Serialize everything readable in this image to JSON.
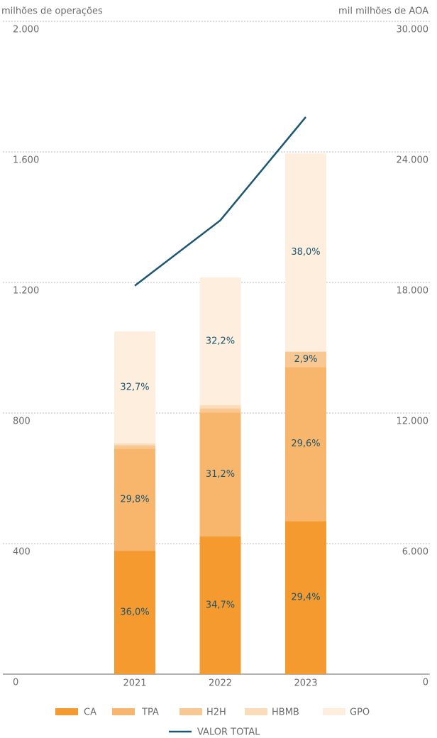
{
  "chart_data": {
    "type": "bar",
    "stacked": true,
    "y_label": "milhões de operações",
    "y2_label": "mil milhões de AOA",
    "categories": [
      "2021",
      "2022",
      "2023"
    ],
    "ylim": [
      0,
      2000
    ],
    "yticks": [
      0,
      400,
      800,
      {
        "value": 1200,
        "label": "1.200"
      },
      {
        "value": 1600,
        "label": "1.600"
      },
      {
        "value": 2000,
        "label": "2.000"
      }
    ],
    "y2lim": [
      0,
      30000
    ],
    "y2ticks": [
      0,
      {
        "value": 6000,
        "label": "6.000"
      },
      {
        "value": 12000,
        "label": "12.000"
      },
      {
        "value": 18000,
        "label": "18.000"
      },
      {
        "value": 24000,
        "label": "24.000"
      },
      {
        "value": 30000,
        "label": "30.000"
      }
    ],
    "grid": true,
    "series": [
      {
        "name": "CA",
        "color": "#f59a2e",
        "values": [
          378,
          422,
          469
        ],
        "percent_labels": [
          "36,0%",
          "34,7%",
          "29,4%"
        ]
      },
      {
        "name": "TPA",
        "color": "#f8b66c",
        "values": [
          313,
          379,
          472
        ],
        "percent_labels": [
          "29,8%",
          "31,2%",
          "29,6%"
        ]
      },
      {
        "name": "H2H",
        "color": "#f9c892",
        "values": [
          10,
          13,
          46
        ],
        "percent_labels": [
          null,
          null,
          "2,9%"
        ]
      },
      {
        "name": "HBMB",
        "color": "#fbdcb9",
        "values": [
          6,
          10,
          2
        ],
        "percent_labels": [
          null,
          null,
          null
        ]
      },
      {
        "name": "GPO",
        "color": "#fdeedd",
        "values": [
          343,
          391,
          606
        ],
        "percent_labels": [
          "32,7%",
          "32,2%",
          "38,0%"
        ]
      },
      {
        "name": "VALOR TOTAL",
        "type": "line",
        "axis": "y2",
        "color": "#1b5673",
        "values": [
          17850,
          20850,
          25600
        ]
      }
    ]
  }
}
